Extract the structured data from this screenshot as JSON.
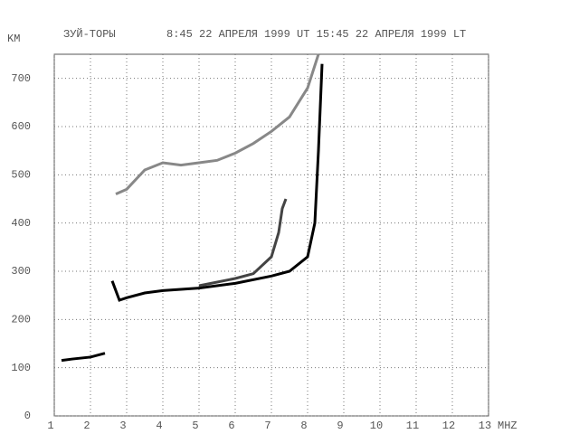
{
  "chart_data": {
    "type": "line",
    "title": "ЗУЙ-ТОРЫ",
    "subtitle": "8:45 22 АПРЕЛЯ 1999 UT 15:45 22 АПРЕЛЯ 1999 LT",
    "y_label": "KM",
    "x_label": "MHZ",
    "xlim": [
      1,
      13
    ],
    "ylim": [
      0,
      750
    ],
    "xticks": [
      1,
      2,
      3,
      4,
      5,
      6,
      7,
      8,
      9,
      10,
      11,
      12,
      13
    ],
    "yticks": [
      0,
      100,
      200,
      300,
      400,
      500,
      600,
      700
    ],
    "grid": true,
    "series": [
      {
        "color": "#000000",
        "x": [
          1.2,
          1.5,
          2,
          2.4
        ],
        "values": [
          115,
          118,
          122,
          130
        ]
      },
      {
        "color": "#000000",
        "x": [
          2.6,
          2.8,
          3,
          3.5,
          4,
          5,
          6,
          7,
          7.5,
          8,
          8.2,
          8.3,
          8.4
        ],
        "values": [
          280,
          240,
          245,
          255,
          260,
          265,
          275,
          290,
          300,
          330,
          400,
          550,
          730
        ]
      },
      {
        "color": "#444444",
        "x": [
          5,
          6,
          6.5,
          7,
          7.2,
          7.3,
          7.4
        ],
        "values": [
          270,
          285,
          295,
          330,
          380,
          430,
          450
        ]
      },
      {
        "color": "#888888",
        "x": [
          2.7,
          3,
          3.5,
          4,
          4.5,
          5,
          5.5,
          6,
          6.5,
          7,
          7.5,
          8,
          8.3
        ],
        "values": [
          460,
          470,
          510,
          525,
          520,
          525,
          530,
          545,
          565,
          590,
          620,
          680,
          750
        ]
      }
    ]
  }
}
